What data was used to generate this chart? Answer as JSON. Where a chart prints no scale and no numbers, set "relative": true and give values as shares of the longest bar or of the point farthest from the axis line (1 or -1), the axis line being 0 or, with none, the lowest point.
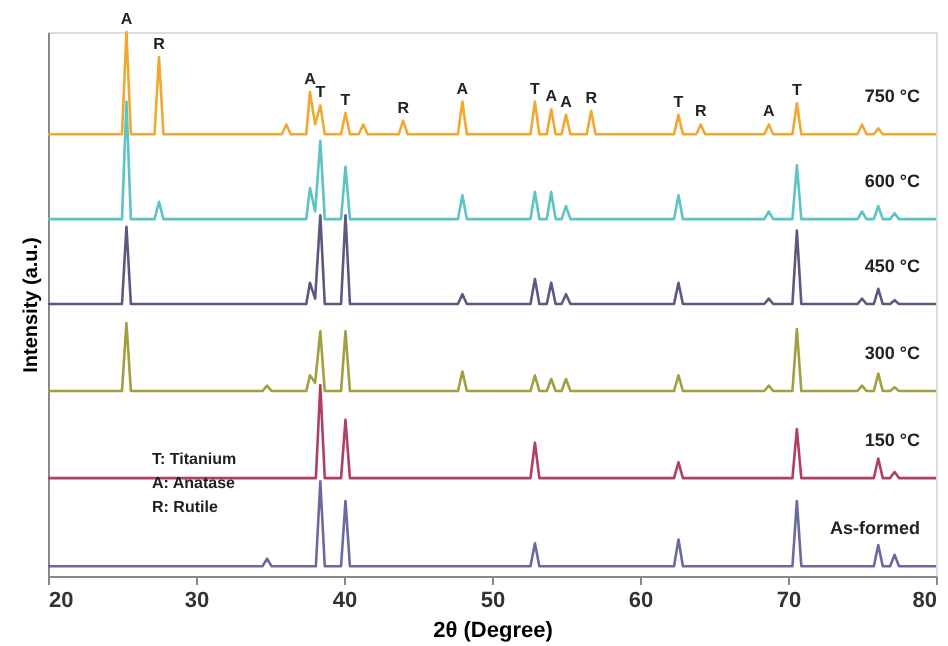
{
  "chart_data": {
    "type": "line",
    "relative": true,
    "xlabel": "2θ (Degree)",
    "ylabel": "Intensity (a.u.)",
    "xlim": [
      20,
      80
    ],
    "xticks": [
      20,
      30,
      40,
      50,
      60,
      70,
      80
    ],
    "grid": false,
    "legend": false,
    "marker": "none",
    "line_style": "solid",
    "series": [
      {
        "name": "750 °C",
        "color": "#f0a830",
        "x": [
          20,
          25.0,
          25.3,
          25.6,
          27.2,
          27.5,
          27.8,
          35.8,
          36.1,
          36.4,
          37.45,
          37.7,
          38.05,
          38.4,
          38.7,
          39.8,
          40.1,
          40.4,
          41.0,
          41.3,
          41.6,
          43.7,
          44.0,
          44.3,
          47.7,
          48.0,
          48.3,
          52.6,
          52.9,
          53.2,
          53.7,
          54.0,
          54.3,
          54.7,
          55.0,
          55.3,
          56.4,
          56.7,
          57.0,
          62.3,
          62.6,
          62.9,
          63.8,
          64.1,
          64.4,
          68.4,
          68.7,
          69.0,
          70.3,
          70.6,
          70.9,
          74.7,
          75.0,
          75.3,
          75.8,
          76.1,
          76.4,
          80
        ],
        "values": [
          0.812,
          0.812,
          1.0,
          0.812,
          0.812,
          0.954,
          0.812,
          0.812,
          0.83,
          0.812,
          0.812,
          0.89,
          0.83,
          0.865,
          0.812,
          0.812,
          0.851,
          0.812,
          0.812,
          0.83,
          0.812,
          0.812,
          0.837,
          0.812,
          0.812,
          0.872,
          0.812,
          0.812,
          0.872,
          0.812,
          0.812,
          0.858,
          0.812,
          0.812,
          0.848,
          0.812,
          0.812,
          0.855,
          0.812,
          0.812,
          0.848,
          0.812,
          0.812,
          0.83,
          0.812,
          0.812,
          0.83,
          0.812,
          0.812,
          0.869,
          0.812,
          0.812,
          0.83,
          0.812,
          0.812,
          0.823,
          0.812,
          0.812
        ]
      },
      {
        "name": "600 °C",
        "color": "#5cc4c4",
        "x": [
          20,
          25.0,
          25.3,
          25.6,
          27.2,
          27.5,
          27.8,
          37.45,
          37.7,
          38.05,
          38.4,
          38.7,
          39.8,
          40.1,
          40.4,
          47.7,
          48.0,
          48.3,
          52.6,
          52.9,
          53.2,
          53.7,
          54.0,
          54.3,
          54.7,
          55.0,
          55.3,
          62.3,
          62.6,
          62.9,
          68.4,
          68.7,
          69.0,
          70.3,
          70.6,
          70.9,
          74.7,
          75.0,
          75.3,
          75.8,
          76.1,
          76.4,
          76.9,
          77.2,
          77.5,
          80
        ],
        "values": [
          0.656,
          0.656,
          0.872,
          0.656,
          0.656,
          0.688,
          0.656,
          0.656,
          0.713,
          0.67,
          0.8,
          0.656,
          0.656,
          0.752,
          0.656,
          0.656,
          0.7,
          0.656,
          0.656,
          0.706,
          0.656,
          0.656,
          0.706,
          0.656,
          0.656,
          0.68,
          0.656,
          0.656,
          0.7,
          0.656,
          0.656,
          0.67,
          0.656,
          0.656,
          0.755,
          0.656,
          0.656,
          0.67,
          0.656,
          0.656,
          0.68,
          0.656,
          0.656,
          0.667,
          0.656,
          0.656
        ]
      },
      {
        "name": "450 °C",
        "color": "#5a5a80",
        "x": [
          20,
          25.0,
          25.3,
          25.6,
          37.45,
          37.7,
          38.05,
          38.4,
          38.7,
          39.8,
          40.1,
          40.4,
          47.7,
          48.0,
          48.3,
          52.6,
          52.9,
          53.2,
          53.7,
          54.0,
          54.3,
          54.7,
          55.0,
          55.3,
          62.3,
          62.6,
          62.9,
          68.4,
          68.7,
          69.0,
          70.3,
          70.6,
          70.9,
          74.7,
          75.0,
          75.3,
          75.8,
          76.1,
          76.4,
          76.9,
          77.2,
          77.5,
          80
        ],
        "values": [
          0.5,
          0.5,
          0.642,
          0.5,
          0.5,
          0.539,
          0.51,
          0.663,
          0.5,
          0.5,
          0.663,
          0.5,
          0.5,
          0.518,
          0.5,
          0.5,
          0.546,
          0.5,
          0.5,
          0.539,
          0.5,
          0.5,
          0.518,
          0.5,
          0.5,
          0.539,
          0.5,
          0.5,
          0.51,
          0.5,
          0.5,
          0.635,
          0.5,
          0.5,
          0.51,
          0.5,
          0.5,
          0.528,
          0.5,
          0.5,
          0.507,
          0.5,
          0.5
        ]
      },
      {
        "name": "300 °C",
        "color": "#a0a040",
        "x": [
          20,
          25.0,
          25.3,
          25.6,
          34.5,
          34.8,
          35.1,
          37.45,
          37.7,
          38.05,
          38.4,
          38.7,
          39.8,
          40.1,
          40.4,
          47.7,
          48.0,
          48.3,
          52.6,
          52.9,
          53.2,
          53.7,
          54.0,
          54.3,
          54.7,
          55.0,
          55.3,
          62.3,
          62.6,
          62.9,
          68.4,
          68.7,
          69.0,
          70.3,
          70.6,
          70.9,
          74.7,
          75.0,
          75.3,
          75.8,
          76.1,
          76.4,
          76.9,
          77.2,
          77.5,
          80
        ],
        "values": [
          0.34,
          0.34,
          0.465,
          0.34,
          0.34,
          0.35,
          0.34,
          0.34,
          0.369,
          0.355,
          0.45,
          0.34,
          0.34,
          0.45,
          0.34,
          0.34,
          0.376,
          0.34,
          0.34,
          0.369,
          0.34,
          0.34,
          0.362,
          0.34,
          0.34,
          0.362,
          0.34,
          0.34,
          0.369,
          0.34,
          0.34,
          0.35,
          0.34,
          0.34,
          0.454,
          0.34,
          0.34,
          0.35,
          0.34,
          0.34,
          0.372,
          0.34,
          0.34,
          0.347,
          0.34,
          0.34
        ]
      },
      {
        "name": "150 °C",
        "color": "#b04060",
        "x": [
          20,
          38.1,
          38.4,
          38.7,
          39.8,
          40.1,
          40.4,
          52.6,
          52.9,
          53.2,
          62.3,
          62.6,
          62.9,
          70.3,
          70.6,
          70.9,
          75.8,
          76.1,
          76.4,
          76.9,
          77.2,
          77.5,
          80
        ],
        "values": [
          0.18,
          0.18,
          0.351,
          0.18,
          0.18,
          0.287,
          0.18,
          0.18,
          0.245,
          0.18,
          0.18,
          0.209,
          0.18,
          0.18,
          0.27,
          0.18,
          0.18,
          0.216,
          0.18,
          0.18,
          0.191,
          0.18,
          0.18
        ]
      },
      {
        "name": "As-formed",
        "color": "#6a6aa0",
        "x": [
          20,
          34.5,
          34.8,
          35.1,
          38.1,
          38.4,
          38.7,
          39.8,
          40.1,
          40.4,
          52.6,
          52.9,
          53.2,
          62.3,
          62.6,
          62.9,
          70.3,
          70.6,
          70.9,
          75.8,
          76.1,
          76.4,
          76.9,
          77.2,
          77.5,
          80
        ],
        "values": [
          0.018,
          0.018,
          0.032,
          0.018,
          0.018,
          0.174,
          0.018,
          0.018,
          0.138,
          0.018,
          0.018,
          0.06,
          0.018,
          0.018,
          0.067,
          0.018,
          0.018,
          0.138,
          0.018,
          0.018,
          0.057,
          0.018,
          0.018,
          0.039,
          0.018,
          0.018
        ]
      }
    ],
    "annotations": [
      {
        "text": "A",
        "x": 25.3,
        "y": 1.0
      },
      {
        "text": "R",
        "x": 27.5,
        "y": 0.954
      },
      {
        "text": "A",
        "x": 37.7,
        "y": 0.89
      },
      {
        "text": "T",
        "x": 38.4,
        "y": 0.865
      },
      {
        "text": "T",
        "x": 40.1,
        "y": 0.851
      },
      {
        "text": "R",
        "x": 44.0,
        "y": 0.837
      },
      {
        "text": "A",
        "x": 48.0,
        "y": 0.872
      },
      {
        "text": "T",
        "x": 52.9,
        "y": 0.872
      },
      {
        "text": "A",
        "x": 54.0,
        "y": 0.858
      },
      {
        "text": "A",
        "x": 55.0,
        "y": 0.848
      },
      {
        "text": "R",
        "x": 56.7,
        "y": 0.855
      },
      {
        "text": "T",
        "x": 62.6,
        "y": 0.848
      },
      {
        "text": "R",
        "x": 64.1,
        "y": 0.83
      },
      {
        "text": "A",
        "x": 68.7,
        "y": 0.83
      },
      {
        "text": "T",
        "x": 70.6,
        "y": 0.869
      },
      "T: Titanium",
      "A: Anatase",
      "R: Rutile"
    ]
  }
}
